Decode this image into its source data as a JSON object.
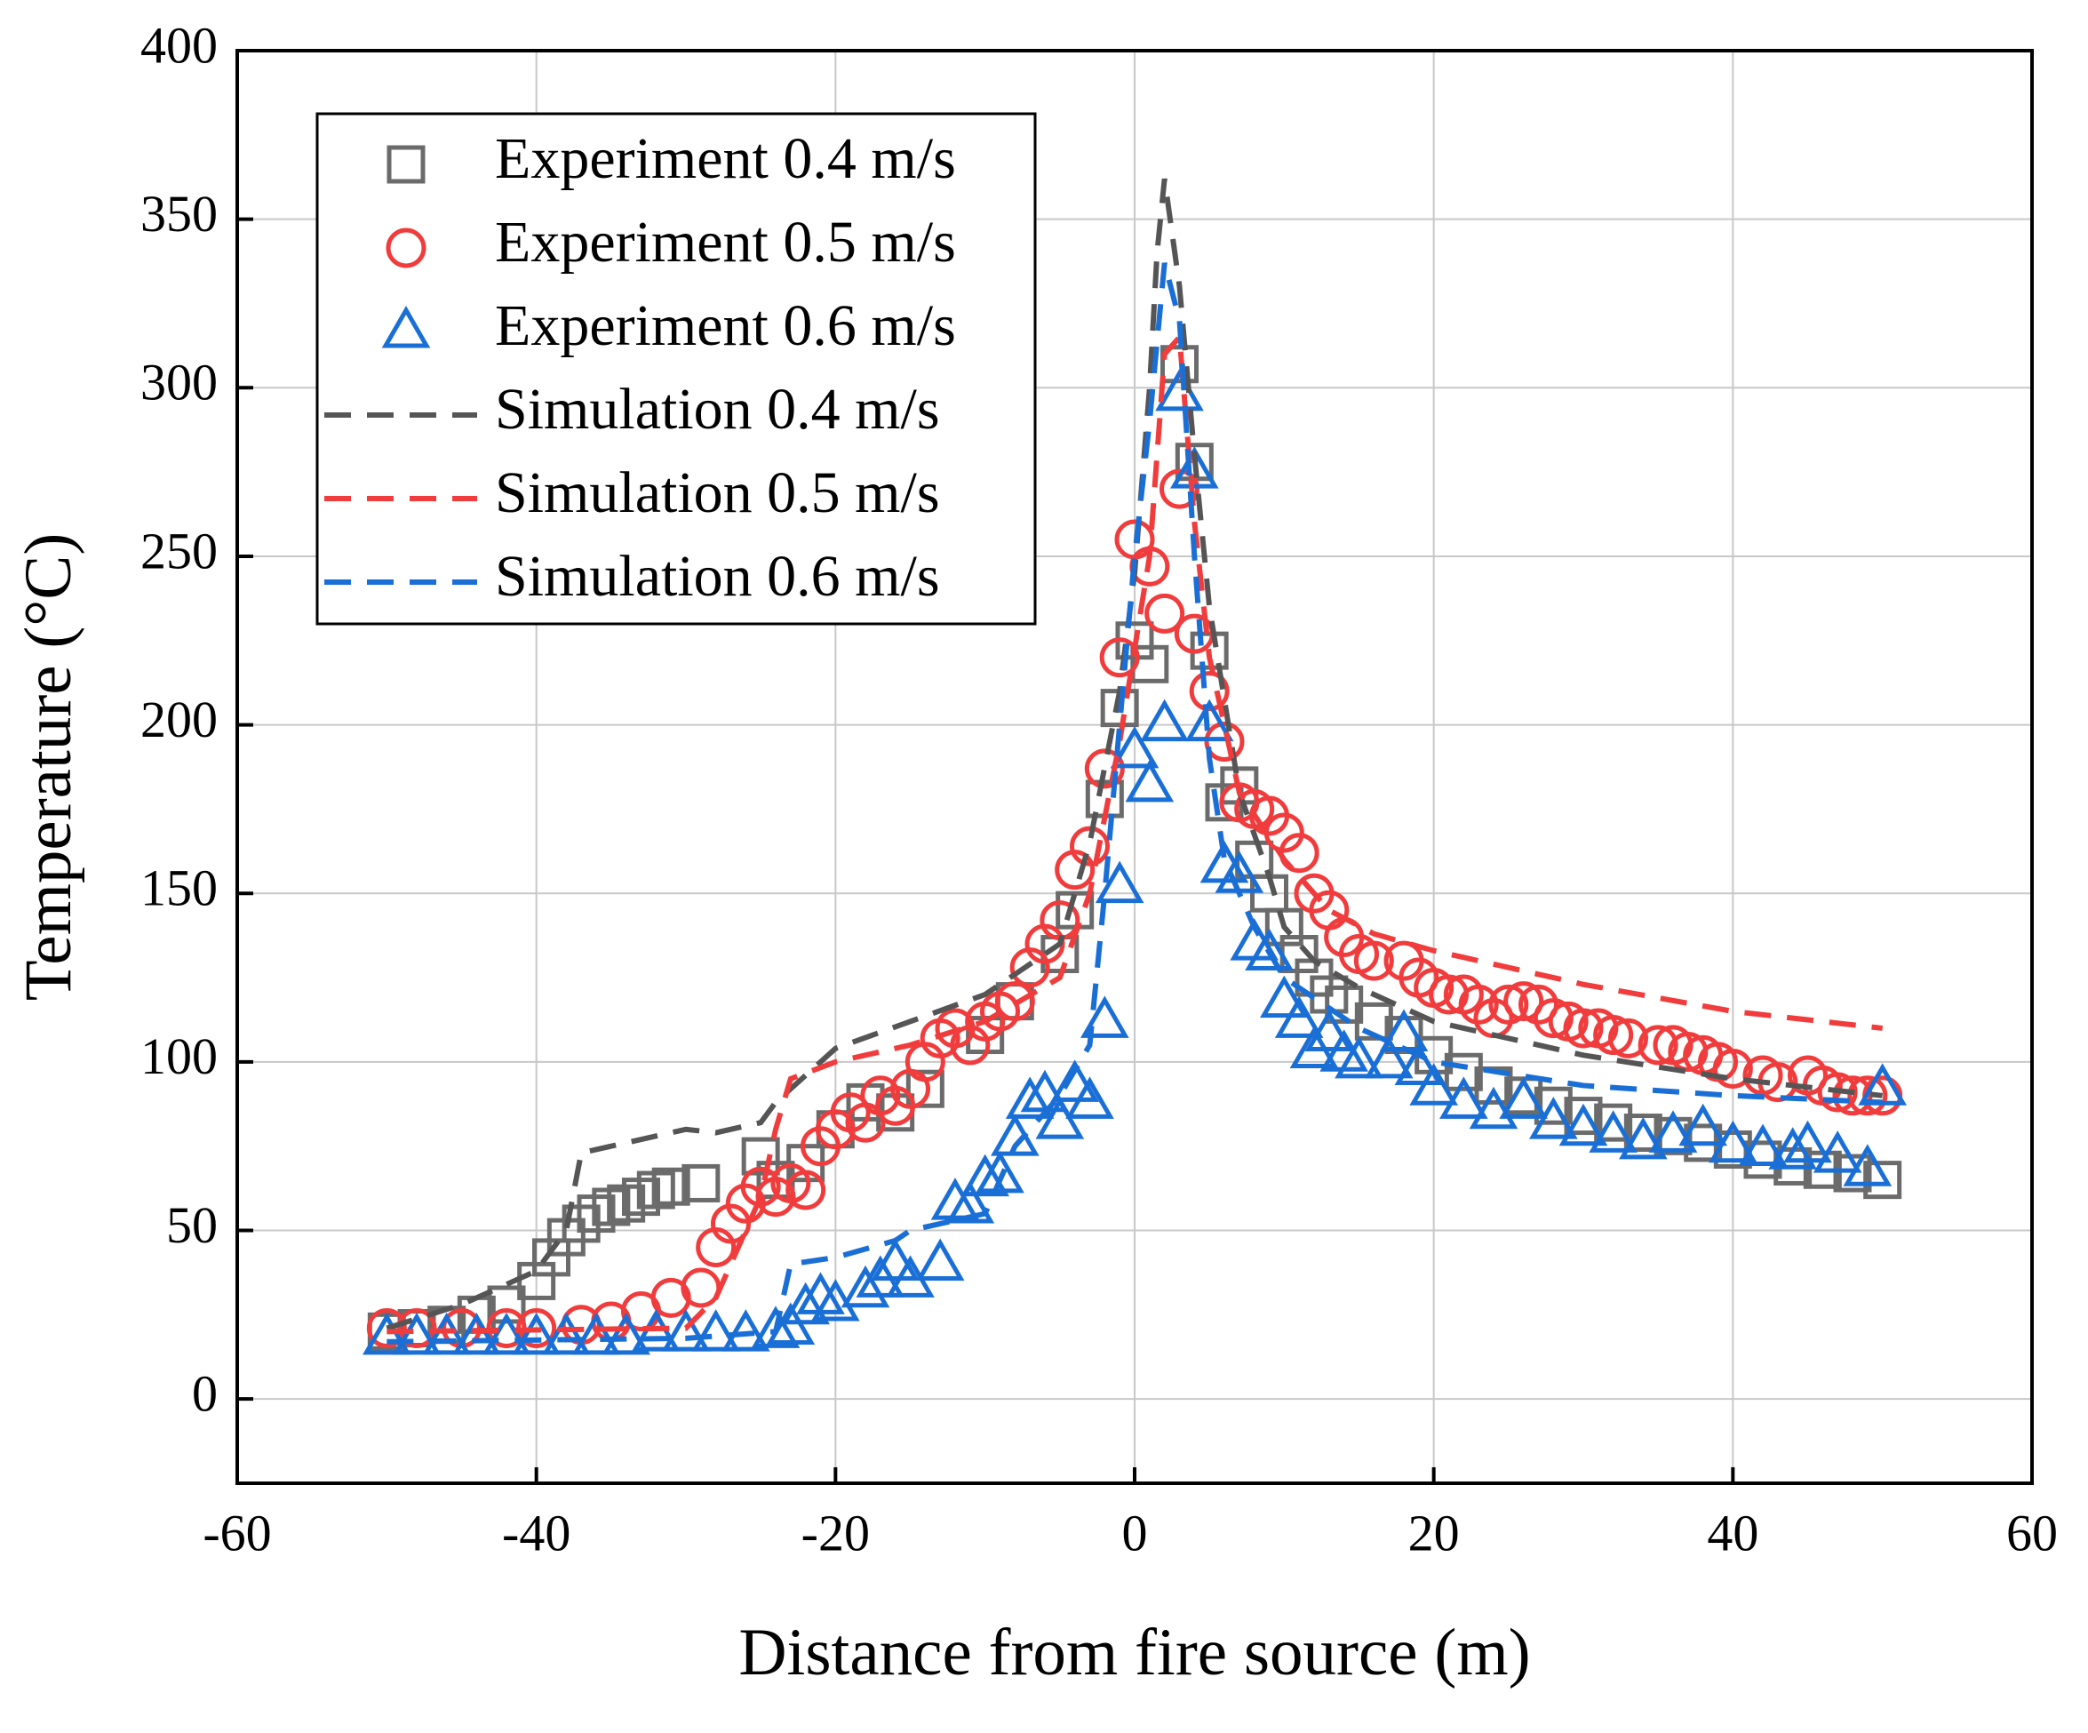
{
  "chart_data": {
    "type": "scatter-line",
    "xlabel": "Distance from fire source (m)",
    "ylabel": "Temperature (°C)",
    "xlim": [
      -60,
      60
    ],
    "xticks": [
      -60,
      -40,
      -20,
      0,
      20,
      40,
      60
    ],
    "ylim": [
      -25,
      400
    ],
    "yticks": [
      0,
      50,
      100,
      150,
      200,
      250,
      300,
      350,
      400
    ],
    "grid": true,
    "legend": "upper left",
    "series": [
      {
        "name": "Experiment 0.4 m/s",
        "color": "#6b6b6b",
        "marker": "square",
        "x": [
          -50,
          -48,
          -46,
          -44,
          -42,
          -40,
          -39,
          -38,
          -37,
          -36,
          -35,
          -34,
          -33,
          -32,
          -31,
          -29,
          -25,
          -24,
          -22,
          -20,
          -18,
          -16,
          -14,
          -10,
          -8,
          -5,
          -4,
          -2,
          -1,
          0,
          1,
          3,
          4,
          5,
          6,
          7,
          8,
          9,
          10,
          11,
          12,
          13,
          14,
          16,
          18,
          20,
          22,
          24,
          26,
          28,
          30,
          32,
          34,
          36,
          38,
          40,
          42,
          44,
          46,
          48,
          50
        ],
        "values": [
          20,
          21,
          22,
          25,
          28,
          35,
          42,
          48,
          52,
          55,
          57,
          58,
          60,
          62,
          63,
          64,
          72,
          65,
          70,
          80,
          88,
          85,
          92,
          108,
          118,
          132,
          145,
          178,
          205,
          225,
          218,
          307,
          278,
          222,
          177,
          182,
          160,
          150,
          140,
          132,
          125,
          120,
          117,
          112,
          108,
          102,
          97,
          93,
          90,
          87,
          84,
          82,
          79,
          78,
          76,
          74,
          71,
          69,
          68,
          67,
          65
        ]
      },
      {
        "name": "Experiment 0.5 m/s",
        "color": "#f03c3c",
        "marker": "circle",
        "x": [
          -50,
          -48,
          -45,
          -42,
          -40,
          -37,
          -35,
          -33,
          -31,
          -29,
          -28,
          -27,
          -26,
          -25,
          -24,
          -23,
          -22,
          -21,
          -20,
          -19,
          -18,
          -17,
          -16,
          -15,
          -14,
          -13,
          -12,
          -11,
          -10,
          -9,
          -8,
          -7,
          -6,
          -5,
          -4,
          -3,
          -2,
          -1,
          0,
          1,
          2,
          3,
          4,
          5,
          6,
          7,
          8,
          9,
          10,
          11,
          12,
          13,
          14,
          15,
          16,
          18,
          19,
          20,
          21,
          22,
          23,
          24,
          25,
          26,
          27,
          28,
          29,
          30,
          31,
          32,
          33,
          35,
          36,
          37,
          38,
          39,
          40,
          42,
          43,
          45,
          46,
          47,
          48,
          49,
          50
        ],
        "values": [
          21,
          21,
          21,
          21,
          21,
          22,
          23,
          26,
          30,
          33,
          45,
          52,
          58,
          63,
          60,
          64,
          62,
          75,
          80,
          85,
          82,
          90,
          87,
          92,
          100,
          107,
          110,
          105,
          112,
          115,
          118,
          128,
          135,
          142,
          157,
          164,
          187,
          220,
          255,
          247,
          233,
          270,
          227,
          210,
          195,
          177,
          175,
          173,
          168,
          162,
          150,
          145,
          137,
          132,
          130,
          130,
          125,
          122,
          120,
          120,
          117,
          113,
          117,
          118,
          117,
          113,
          112,
          110,
          110,
          108,
          107,
          105,
          105,
          103,
          102,
          100,
          98,
          96,
          94,
          96,
          93,
          91,
          90,
          90,
          90
        ]
      },
      {
        "name": "Experiment 0.6 m/s",
        "color": "#1a6fd6",
        "marker": "triangle",
        "x": [
          -50,
          -48,
          -46,
          -44,
          -42,
          -40,
          -38,
          -36,
          -34,
          -32,
          -30,
          -28,
          -26,
          -24,
          -23,
          -22,
          -21,
          -20,
          -18,
          -17,
          -16,
          -15,
          -13,
          -12,
          -11,
          -10,
          -9,
          -8,
          -7,
          -6,
          -5,
          -4,
          -3,
          -2,
          -1,
          0,
          1,
          2,
          3,
          4,
          5,
          6,
          7,
          8,
          9,
          10,
          11,
          12,
          13,
          14,
          15,
          17,
          18,
          19,
          20,
          22,
          24,
          26,
          28,
          30,
          32,
          34,
          36,
          38,
          40,
          42,
          44,
          45,
          47,
          49,
          50
        ],
        "values": [
          18,
          18,
          18,
          18,
          18,
          18,
          18,
          18,
          18,
          19,
          19,
          19,
          19,
          20,
          21,
          27,
          30,
          28,
          32,
          35,
          40,
          35,
          40,
          58,
          57,
          65,
          66,
          77,
          88,
          90,
          82,
          93,
          88,
          112,
          152,
          192,
          182,
          200,
          298,
          275,
          200,
          158,
          155,
          135,
          132,
          118,
          112,
          103,
          108,
          102,
          100,
          100,
          108,
          98,
          92,
          88,
          85,
          88,
          82,
          80,
          78,
          76,
          78,
          80,
          75,
          74,
          73,
          75,
          72,
          68,
          92
        ]
      },
      {
        "name": "Simulation 0.4 m/s",
        "color": "#555555",
        "marker": "dash",
        "x": [
          -50,
          -45,
          -40,
          -38,
          -37,
          -35,
          -30,
          -28,
          -25,
          -24,
          -20,
          -15,
          -10,
          -5,
          -3,
          -1,
          0,
          1,
          1.5,
          2,
          3,
          4,
          5,
          7,
          9,
          10,
          12,
          15,
          20,
          30,
          40,
          50
        ],
        "values": [
          21,
          28,
          38,
          50,
          73,
          75,
          80,
          79,
          82,
          88,
          104,
          112,
          120,
          135,
          165,
          210,
          245,
          300,
          340,
          362,
          330,
          280,
          235,
          180,
          155,
          140,
          130,
          122,
          112,
          102,
          95,
          90
        ]
      },
      {
        "name": "Simulation 0.5 m/s",
        "color": "#f03c3c",
        "marker": "dash",
        "x": [
          -50,
          -30,
          -28,
          -25,
          -24,
          -23,
          -20,
          -15,
          -10,
          -5,
          -3,
          -1,
          1,
          2,
          3,
          4,
          5,
          7,
          10,
          13,
          16,
          20,
          30,
          40,
          50
        ],
        "values": [
          20,
          21,
          30,
          60,
          80,
          95,
          100,
          105,
          112,
          125,
          150,
          195,
          250,
          310,
          315,
          260,
          220,
          180,
          160,
          145,
          138,
          133,
          123,
          115,
          110
        ]
      },
      {
        "name": "Simulation 0.6 m/s",
        "color": "#1a6fd6",
        "marker": "dash",
        "x": [
          -50,
          -30,
          -24,
          -23,
          -20,
          -16,
          -15,
          -10,
          -8,
          -5,
          -3,
          -2,
          -1,
          0,
          1,
          2,
          3,
          4,
          5,
          6,
          8,
          10,
          15,
          20,
          30,
          40,
          50
        ],
        "values": [
          17,
          18,
          20,
          40,
          42,
          47,
          50,
          55,
          75,
          90,
          105,
          150,
          200,
          250,
          290,
          337,
          320,
          250,
          190,
          160,
          140,
          125,
          110,
          100,
          93,
          90,
          88
        ]
      }
    ]
  }
}
